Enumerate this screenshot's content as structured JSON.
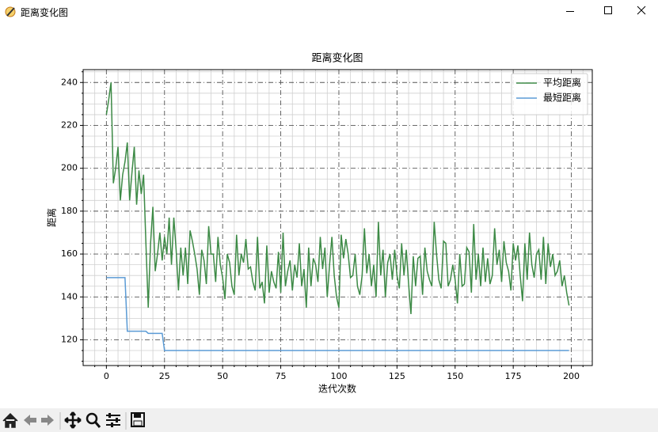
{
  "window": {
    "title": "距离变化图"
  },
  "chart_data": {
    "type": "line",
    "title": "距离变化图",
    "x_label": "迭代次数",
    "y_label": "距离",
    "x": [
      0,
      1,
      2,
      3,
      4,
      5,
      6,
      7,
      8,
      9,
      10,
      11,
      12,
      13,
      14,
      15,
      16,
      17,
      18,
      19,
      20,
      21,
      22,
      23,
      24,
      25,
      26,
      27,
      28,
      29,
      30,
      31,
      32,
      33,
      34,
      35,
      36,
      37,
      38,
      39,
      40,
      41,
      42,
      43,
      44,
      45,
      46,
      47,
      48,
      49,
      50,
      51,
      52,
      53,
      54,
      55,
      56,
      57,
      58,
      59,
      60,
      61,
      62,
      63,
      64,
      65,
      66,
      67,
      68,
      69,
      70,
      71,
      72,
      73,
      74,
      75,
      76,
      77,
      78,
      79,
      80,
      81,
      82,
      83,
      84,
      85,
      86,
      87,
      88,
      89,
      90,
      91,
      92,
      93,
      94,
      95,
      96,
      97,
      98,
      99,
      100,
      101,
      102,
      103,
      104,
      105,
      106,
      107,
      108,
      109,
      110,
      111,
      112,
      113,
      114,
      115,
      116,
      117,
      118,
      119,
      120,
      121,
      122,
      123,
      124,
      125,
      126,
      127,
      128,
      129,
      130,
      131,
      132,
      133,
      134,
      135,
      136,
      137,
      138,
      139,
      140,
      141,
      142,
      143,
      144,
      145,
      146,
      147,
      148,
      149,
      150,
      151,
      152,
      153,
      154,
      155,
      156,
      157,
      158,
      159,
      160,
      161,
      162,
      163,
      164,
      165,
      166,
      167,
      168,
      169,
      170,
      171,
      172,
      173,
      174,
      175,
      176,
      177,
      178,
      179,
      180,
      181,
      182,
      183,
      184,
      185,
      186,
      187,
      188,
      189,
      190,
      191,
      192,
      193,
      194,
      195,
      196,
      197,
      198,
      199
    ],
    "series": [
      {
        "name": "平均距离",
        "color": "#3d8a46",
        "values": [
          225,
          232,
          240,
          193,
          200,
          210,
          185,
          197,
          203,
          212,
          185,
          198,
          210,
          183,
          199,
          188,
          197,
          165,
          135,
          165,
          182,
          152,
          160,
          170,
          157,
          168,
          160,
          177,
          155,
          177,
          162,
          143,
          163,
          150,
          163,
          146,
          171,
          166,
          160,
          153,
          141,
          162,
          157,
          146,
          173,
          160,
          160,
          147,
          168,
          155,
          149,
          139,
          160,
          156,
          145,
          141,
          169,
          150,
          160,
          156,
          167,
          153,
          154,
          147,
          143,
          168,
          144,
          147,
          137,
          164,
          142,
          152,
          147,
          144,
          161,
          142,
          170,
          145,
          152,
          157,
          143,
          155,
          149,
          165,
          145,
          153,
          135,
          163,
          145,
          158,
          155,
          147,
          168,
          153,
          163,
          140,
          155,
          168,
          150,
          140,
          135,
          169,
          158,
          167,
          160,
          149,
          150,
          160,
          145,
          141,
          150,
          172,
          151,
          160,
          145,
          155,
          140,
          175,
          150,
          162,
          140,
          156,
          160,
          148,
          162,
          150,
          144,
          165,
          150,
          162,
          146,
          132,
          159,
          145,
          158,
          159,
          141,
          163,
          152,
          148,
          145,
          175,
          160,
          148,
          144,
          166,
          165,
          145,
          148,
          155,
          148,
          137,
          160,
          145,
          146,
          163,
          161,
          142,
          174,
          148,
          160,
          145,
          163,
          147,
          158,
          146,
          150,
          172,
          155,
          162,
          147,
          166,
          156,
          152,
          143,
          165,
          157,
          164,
          150,
          138,
          165,
          148,
          170,
          155,
          149,
          160,
          162,
          148,
          168,
          146,
          165,
          154,
          160,
          150,
          152,
          157,
          145,
          150,
          142,
          136
        ]
      },
      {
        "name": "最短距离",
        "color": "#5b9bd5",
        "values": [
          149,
          149,
          149,
          149,
          149,
          149,
          149,
          149,
          149,
          124,
          124,
          124,
          124,
          124,
          124,
          124,
          124,
          124,
          123,
          123,
          123,
          123,
          123,
          123,
          123,
          115,
          115,
          115,
          115,
          115,
          115,
          115,
          115,
          115,
          115,
          115,
          115,
          115,
          115,
          115,
          115,
          115,
          115,
          115,
          115,
          115,
          115,
          115,
          115,
          115,
          115,
          115,
          115,
          115,
          115,
          115,
          115,
          115,
          115,
          115,
          115,
          115,
          115,
          115,
          115,
          115,
          115,
          115,
          115,
          115,
          115,
          115,
          115,
          115,
          115,
          115,
          115,
          115,
          115,
          115,
          115,
          115,
          115,
          115,
          115,
          115,
          115,
          115,
          115,
          115,
          115,
          115,
          115,
          115,
          115,
          115,
          115,
          115,
          115,
          115,
          115,
          115,
          115,
          115,
          115,
          115,
          115,
          115,
          115,
          115,
          115,
          115,
          115,
          115,
          115,
          115,
          115,
          115,
          115,
          115,
          115,
          115,
          115,
          115,
          115,
          115,
          115,
          115,
          115,
          115,
          115,
          115,
          115,
          115,
          115,
          115,
          115,
          115,
          115,
          115,
          115,
          115,
          115,
          115,
          115,
          115,
          115,
          115,
          115,
          115,
          115,
          115,
          115,
          115,
          115,
          115,
          115,
          115,
          115,
          115,
          115,
          115,
          115,
          115,
          115,
          115,
          115,
          115,
          115,
          115,
          115,
          115,
          115,
          115,
          115,
          115,
          115,
          115,
          115,
          115,
          115,
          115,
          115,
          115,
          115,
          115,
          115,
          115,
          115,
          115,
          115,
          115,
          115,
          115,
          115,
          115,
          115,
          115,
          115,
          115
        ]
      }
    ],
    "xlim": [
      -10,
      209
    ],
    "ylim": [
      108,
      246
    ],
    "xticks": [
      0,
      25,
      50,
      75,
      100,
      125,
      150,
      175,
      200
    ],
    "yticks": [
      120,
      140,
      160,
      180,
      200,
      220,
      240
    ],
    "xminorticks": [
      -5,
      5,
      10,
      15,
      20,
      30,
      35,
      40,
      45,
      55,
      60,
      65,
      70,
      80,
      85,
      90,
      95,
      105,
      110,
      115,
      120,
      130,
      135,
      140,
      145,
      155,
      160,
      165,
      170,
      180,
      185,
      190,
      195,
      205
    ],
    "yminorticks": [
      110,
      115,
      125,
      130,
      135,
      145,
      150,
      155,
      165,
      170,
      175,
      185,
      190,
      195,
      205,
      210,
      215,
      225,
      230,
      235,
      245
    ],
    "grid": true,
    "legend": "upper right"
  }
}
